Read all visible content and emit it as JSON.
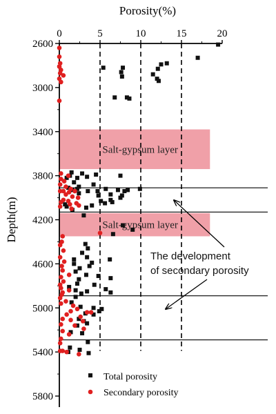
{
  "chart_data": {
    "type": "scatter",
    "xlabel": "Porosity(%)",
    "ylabel": "Depth(m)",
    "xlim": [
      0,
      20
    ],
    "ylim": [
      2600,
      5800
    ],
    "x_ticks": [
      0,
      5,
      10,
      15,
      20
    ],
    "y_ticks": [
      2600,
      3000,
      3400,
      3800,
      4200,
      4600,
      5000,
      5400,
      5800
    ],
    "x_axis_position": "top",
    "y_axis_reversed": true,
    "dashed_vertical_lines": [
      5,
      10,
      15
    ],
    "horizontal_lines": [
      3910,
      4130,
      4890,
      5290
    ],
    "bands": [
      {
        "label": "Salt-gypsum layer",
        "from": 3380,
        "to": 3740,
        "x_from": 0,
        "x_to": 18.5,
        "color": "#f0a0a8"
      },
      {
        "label": "Salt-gypsum layer",
        "from": 4140,
        "to": 4350,
        "x_from": 0,
        "x_to": 18.5,
        "color": "#f0a0a8"
      }
    ],
    "annotation": {
      "lines": [
        "The development",
        "of secondary porosity"
      ]
    },
    "legend": {
      "placement": "bottom",
      "entries": [
        "Total porosity",
        "Secondary porosity"
      ]
    },
    "series": [
      {
        "name": "Total porosity",
        "marker": "square",
        "color": "#111111",
        "points": [
          [
            19.5,
            2610
          ],
          [
            17,
            2730
          ],
          [
            13.2,
            2780
          ],
          [
            12.5,
            2790
          ],
          [
            12.1,
            2830
          ],
          [
            11.5,
            2880
          ],
          [
            12,
            2920
          ],
          [
            12.2,
            2940
          ],
          [
            5.4,
            2820
          ],
          [
            7.8,
            2820
          ],
          [
            7.6,
            2860
          ],
          [
            7.7,
            2900
          ],
          [
            6.8,
            3090
          ],
          [
            8.3,
            3090
          ],
          [
            8.6,
            3100
          ],
          [
            1.5,
            3770
          ],
          [
            2.8,
            3780
          ],
          [
            4.5,
            3790
          ],
          [
            7.5,
            3800
          ],
          [
            1.3,
            3800
          ],
          [
            0.9,
            3820
          ],
          [
            2.2,
            3820
          ],
          [
            3.4,
            3810
          ],
          [
            1.8,
            3860
          ],
          [
            4.2,
            3880
          ],
          [
            2.4,
            3900
          ],
          [
            1.1,
            3910
          ],
          [
            2.2,
            3920
          ],
          [
            1.6,
            3930
          ],
          [
            3.5,
            3940
          ],
          [
            4.7,
            3940
          ],
          [
            5.7,
            3920
          ],
          [
            7.2,
            3930
          ],
          [
            8.0,
            3940
          ],
          [
            8.4,
            3930
          ],
          [
            9.9,
            3920
          ],
          [
            2.4,
            3960
          ],
          [
            4.8,
            3980
          ],
          [
            6.3,
            3970
          ],
          [
            7.7,
            3980
          ],
          [
            7.5,
            4000
          ],
          [
            6.3,
            4020
          ],
          [
            5.1,
            4030
          ],
          [
            5.6,
            4050
          ],
          [
            6.5,
            4040
          ],
          [
            4.0,
            4070
          ],
          [
            0.7,
            4060
          ],
          [
            0.9,
            4080
          ],
          [
            3.3,
            4090
          ],
          [
            1.6,
            4110
          ],
          [
            3.0,
            4160
          ],
          [
            9.0,
            4290
          ],
          [
            7.8,
            4250
          ],
          [
            6.6,
            4330
          ],
          [
            3.2,
            4420
          ],
          [
            3.5,
            4460
          ],
          [
            2.8,
            4500
          ],
          [
            3.4,
            4540
          ],
          [
            1.8,
            4560
          ],
          [
            6.2,
            4560
          ],
          [
            4.0,
            4590
          ],
          [
            1.8,
            4600
          ],
          [
            3.7,
            4620
          ],
          [
            2.5,
            4640
          ],
          [
            2.0,
            4670
          ],
          [
            3.3,
            4700
          ],
          [
            4.8,
            4710
          ],
          [
            6.3,
            4730
          ],
          [
            2.4,
            4740
          ],
          [
            2.2,
            4780
          ],
          [
            4.3,
            4790
          ],
          [
            1.2,
            4810
          ],
          [
            5.7,
            4830
          ],
          [
            2.0,
            4840
          ],
          [
            3.4,
            4850
          ],
          [
            2.7,
            4870
          ],
          [
            6.3,
            4860
          ],
          [
            2.0,
            4900
          ],
          [
            1.5,
            4950
          ],
          [
            2.6,
            4990
          ],
          [
            4.2,
            5000
          ],
          [
            5.2,
            5010
          ],
          [
            4.9,
            5030
          ],
          [
            3.2,
            5050
          ],
          [
            4.2,
            5060
          ],
          [
            2.4,
            5100
          ],
          [
            3.0,
            5120
          ],
          [
            3.4,
            5140
          ],
          [
            2.2,
            5160
          ],
          [
            1.4,
            5220
          ],
          [
            2.8,
            5230
          ],
          [
            3.5,
            5310
          ],
          [
            1.3,
            5360
          ],
          [
            2.5,
            5380
          ],
          [
            3.6,
            5410
          ],
          [
            1.1,
            5400
          ]
        ]
      },
      {
        "name": "Secondary porosity",
        "marker": "circle",
        "color": "#e02020",
        "points": [
          [
            0,
            2640
          ],
          [
            0,
            2720
          ],
          [
            0.1,
            2780
          ],
          [
            0,
            2810
          ],
          [
            0.2,
            2840
          ],
          [
            0.1,
            2870
          ],
          [
            0.5,
            2890
          ],
          [
            0,
            2920
          ],
          [
            0.2,
            2950
          ],
          [
            0,
            3120
          ],
          [
            0.2,
            3780
          ],
          [
            1.1,
            3800
          ],
          [
            0.2,
            3830
          ],
          [
            0.6,
            3850
          ],
          [
            0.1,
            3880
          ],
          [
            0.8,
            3900
          ],
          [
            1.4,
            3920
          ],
          [
            0.1,
            3940
          ],
          [
            0.5,
            3940
          ],
          [
            1.9,
            3940
          ],
          [
            1.2,
            3950
          ],
          [
            0.8,
            3970
          ],
          [
            1.6,
            3990
          ],
          [
            2.3,
            4000
          ],
          [
            0.5,
            4020
          ],
          [
            1.1,
            4030
          ],
          [
            0.2,
            4040
          ],
          [
            2.1,
            4050
          ],
          [
            1.3,
            4060
          ],
          [
            2.4,
            4070
          ],
          [
            0.1,
            4080
          ],
          [
            1.5,
            4100
          ],
          [
            5.0,
            4320
          ],
          [
            0.4,
            4350
          ],
          [
            0.3,
            4400
          ],
          [
            0.1,
            4430
          ],
          [
            0.5,
            4480
          ],
          [
            0.1,
            4540
          ],
          [
            0.6,
            4580
          ],
          [
            0.3,
            4620
          ],
          [
            0.4,
            4660
          ],
          [
            1.2,
            4700
          ],
          [
            0.2,
            4720
          ],
          [
            0.5,
            4760
          ],
          [
            0.1,
            4790
          ],
          [
            0.2,
            4820
          ],
          [
            1.2,
            4840
          ],
          [
            0.4,
            4860
          ],
          [
            0.3,
            4880
          ],
          [
            0.1,
            4910
          ],
          [
            0.8,
            4940
          ],
          [
            0.2,
            4960
          ],
          [
            1.7,
            4980
          ],
          [
            2.2,
            5010
          ],
          [
            1.4,
            5030
          ],
          [
            3.4,
            5040
          ],
          [
            3.9,
            5040
          ],
          [
            0.9,
            5060
          ],
          [
            2.6,
            5080
          ],
          [
            0.4,
            5100
          ],
          [
            1.4,
            5110
          ],
          [
            2.9,
            5120
          ],
          [
            0.2,
            5150
          ],
          [
            1.9,
            5160
          ],
          [
            3.0,
            5190
          ],
          [
            0.4,
            5210
          ],
          [
            1.2,
            5240
          ],
          [
            0.2,
            5280
          ],
          [
            0.1,
            5320
          ],
          [
            0.4,
            5390
          ],
          [
            0.9,
            5400
          ],
          [
            2.4,
            5420
          ],
          [
            0.1,
            5390
          ]
        ]
      }
    ]
  }
}
